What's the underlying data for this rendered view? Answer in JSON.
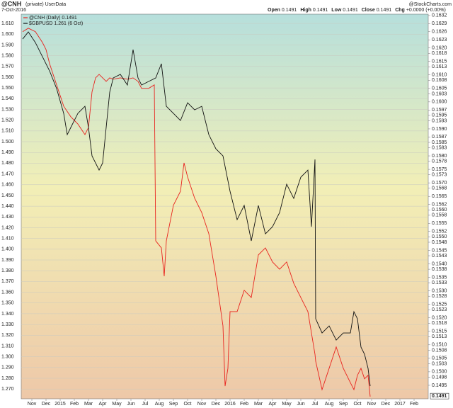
{
  "chart_data": {
    "type": "line",
    "title": "@CNH",
    "subtitle": "(private) UserData",
    "date": "7-Oct-2016",
    "source": "@StockCharts.com",
    "quote": [
      {
        "label": "Open",
        "value": "0.1491"
      },
      {
        "label": "High",
        "value": "0.1491"
      },
      {
        "label": "Low",
        "value": "0.1491"
      },
      {
        "label": "Close",
        "value": "0.1491"
      },
      {
        "label": "Chg",
        "value": "+0.0000 (+0.00%)"
      }
    ],
    "grid": true,
    "legend": "top-left",
    "xlim": [
      -0.75,
      28
    ],
    "xticks": [
      {
        "value": 0,
        "label": "Nov"
      },
      {
        "value": 1,
        "label": "Dec"
      },
      {
        "value": 2,
        "label": "2015"
      },
      {
        "value": 3,
        "label": "Feb"
      },
      {
        "value": 4,
        "label": "Mar"
      },
      {
        "value": 5,
        "label": "Apr"
      },
      {
        "value": 6,
        "label": "May"
      },
      {
        "value": 7,
        "label": "Jun"
      },
      {
        "value": 8,
        "label": "Jul"
      },
      {
        "value": 9,
        "label": "Aug"
      },
      {
        "value": 10,
        "label": "Sep"
      },
      {
        "value": 11,
        "label": "Oct"
      },
      {
        "value": 12,
        "label": "Nov"
      },
      {
        "value": 13,
        "label": "Dec"
      },
      {
        "value": 14,
        "label": "2016"
      },
      {
        "value": 15,
        "label": "Feb"
      },
      {
        "value": 16,
        "label": "Mar"
      },
      {
        "value": 17,
        "label": "Apr"
      },
      {
        "value": 18,
        "label": "May"
      },
      {
        "value": 19,
        "label": "Jun"
      },
      {
        "value": 20,
        "label": "Jul"
      },
      {
        "value": 21,
        "label": "Aug"
      },
      {
        "value": 22,
        "label": "Sep"
      },
      {
        "value": 23,
        "label": "Oct"
      },
      {
        "value": 24,
        "label": "Nov"
      },
      {
        "value": 25,
        "label": "Dec"
      },
      {
        "value": 26,
        "label": "2017"
      },
      {
        "value": 27,
        "label": "Feb"
      }
    ],
    "ylim": [
      1.2609,
      1.6186
    ],
    "yticks": [
      {
        "value": 1.61,
        "label": "1.610"
      },
      {
        "value": 1.6,
        "label": "1.600"
      },
      {
        "value": 1.59,
        "label": "1.590"
      },
      {
        "value": 1.58,
        "label": "1.580"
      },
      {
        "value": 1.57,
        "label": "1.570"
      },
      {
        "value": 1.56,
        "label": "1.560"
      },
      {
        "value": 1.55,
        "label": "1.550"
      },
      {
        "value": 1.54,
        "label": "1.540"
      },
      {
        "value": 1.53,
        "label": "1.530"
      },
      {
        "value": 1.52,
        "label": "1.520"
      },
      {
        "value": 1.51,
        "label": "1.510"
      },
      {
        "value": 1.5,
        "label": "1.500"
      },
      {
        "value": 1.49,
        "label": "1.490"
      },
      {
        "value": 1.48,
        "label": "1.480"
      },
      {
        "value": 1.47,
        "label": "1.470"
      },
      {
        "value": 1.46,
        "label": "1.460"
      },
      {
        "value": 1.45,
        "label": "1.450"
      },
      {
        "value": 1.44,
        "label": "1.440"
      },
      {
        "value": 1.43,
        "label": "1.430"
      },
      {
        "value": 1.42,
        "label": "1.420"
      },
      {
        "value": 1.41,
        "label": "1.410"
      },
      {
        "value": 1.4,
        "label": "1.400"
      },
      {
        "value": 1.39,
        "label": "1.390"
      },
      {
        "value": 1.38,
        "label": "1.380"
      },
      {
        "value": 1.37,
        "label": "1.370"
      },
      {
        "value": 1.36,
        "label": "1.360"
      },
      {
        "value": 1.35,
        "label": "1.350"
      },
      {
        "value": 1.34,
        "label": "1.340"
      },
      {
        "value": 1.33,
        "label": "1.330"
      },
      {
        "value": 1.32,
        "label": "1.320"
      },
      {
        "value": 1.31,
        "label": "1.310"
      },
      {
        "value": 1.3,
        "label": "1.300"
      },
      {
        "value": 1.29,
        "label": "1.290"
      },
      {
        "value": 1.28,
        "label": "1.280"
      },
      {
        "value": 1.27,
        "label": "1.270"
      }
    ],
    "y2lim": [
      0.149,
      0.16325
    ],
    "y2ticks": [
      0.1632,
      0.1629,
      0.1626,
      0.1623,
      {
        "value": 0.162,
        "label": "0.1620"
      },
      0.1618,
      0.1615,
      0.1613,
      {
        "value": 0.161,
        "label": "0.1610"
      },
      0.1608,
      0.1605,
      0.1603,
      {
        "value": 0.16,
        "label": "0.1600"
      },
      0.1597,
      0.1595,
      0.1593,
      {
        "value": 0.159,
        "label": "0.1590"
      },
      0.1587,
      0.1585,
      0.1583,
      {
        "value": 0.158,
        "label": "0.1580"
      },
      0.1578,
      0.1575,
      0.1573,
      {
        "value": 0.157,
        "label": "0.1570"
      },
      0.1568,
      0.1565,
      0.1562,
      {
        "value": 0.156,
        "label": "0.1560"
      },
      0.1558,
      0.1555,
      0.1552,
      {
        "value": 0.155,
        "label": "0.1550"
      },
      0.1548,
      0.1545,
      0.1543,
      {
        "value": 0.154,
        "label": "0.1540"
      },
      0.1538,
      0.1535,
      0.1533,
      {
        "value": 0.153,
        "label": "0.1530"
      },
      0.1528,
      0.1525,
      0.1523,
      {
        "value": 0.152,
        "label": "0.1520"
      },
      0.1518,
      0.1515,
      0.1513,
      {
        "value": 0.151,
        "label": "0.1510"
      },
      0.1508,
      0.1505,
      0.1503,
      {
        "value": 0.15,
        "label": "0.1500"
      },
      0.1498,
      0.1495
    ],
    "y2_marker": {
      "value": 0.1491,
      "label": "0.1491"
    },
    "series": [
      {
        "name": "@CNH (Daily) 0.1491",
        "color": "#e8231e",
        "axis": "y2",
        "x": [
          -0.65,
          -0.25,
          0.25,
          0.75,
          1.0,
          1.25,
          1.75,
          2.25,
          2.75,
          3.25,
          3.75,
          4.0,
          4.25,
          4.5,
          4.75,
          5.0,
          5.25,
          5.5,
          5.75,
          6.25,
          6.75,
          7.15,
          7.5,
          7.75,
          8.25,
          8.65,
          8.75,
          9.15,
          9.35,
          9.5,
          10.0,
          10.5,
          10.75,
          11.0,
          11.5,
          12.0,
          12.5,
          13.0,
          13.5,
          13.65,
          13.85,
          14.0,
          14.5,
          15.0,
          15.5,
          16.0,
          16.5,
          17.0,
          17.5,
          18.0,
          18.5,
          19.0,
          19.5,
          19.75,
          20.0,
          20.05,
          20.5,
          21.0,
          21.5,
          22.0,
          22.5,
          22.75,
          23.0,
          23.25,
          23.5,
          23.75,
          23.9
        ],
        "values": [
          0.1626,
          0.16273,
          0.1626,
          0.1622,
          0.16194,
          0.16142,
          0.16063,
          0.15984,
          0.15945,
          0.15918,
          0.15879,
          0.15905,
          0.16037,
          0.16089,
          0.16102,
          0.16089,
          0.16076,
          0.16089,
          0.16084,
          0.16089,
          0.16084,
          0.16089,
          0.16076,
          0.1605,
          0.1605,
          0.16063,
          0.15485,
          0.15459,
          0.15354,
          0.15485,
          0.15617,
          0.15669,
          0.15774,
          0.15722,
          0.15643,
          0.1559,
          0.15512,
          0.15354,
          0.1517,
          0.14947,
          0.15013,
          0.15223,
          0.15223,
          0.15302,
          0.15275,
          0.15433,
          0.15459,
          0.15407,
          0.1538,
          0.15407,
          0.15328,
          0.15275,
          0.15223,
          0.15144,
          0.15065,
          0.15039,
          0.14934,
          0.15013,
          0.15092,
          0.15013,
          0.1496,
          0.14934,
          0.14987,
          0.15013,
          0.14974,
          0.14987,
          0.14908
        ]
      },
      {
        "name": "$GBPUSD 1.261 (6 Oct)",
        "color": "#111111",
        "axis": "y",
        "x": [
          -0.65,
          -0.25,
          0.25,
          0.75,
          1.25,
          1.75,
          2.25,
          2.5,
          2.75,
          3.25,
          3.75,
          4.0,
          4.25,
          4.5,
          4.75,
          5.0,
          5.25,
          5.5,
          5.75,
          6.25,
          6.75,
          7.15,
          7.5,
          7.75,
          8.25,
          8.75,
          9.15,
          9.5,
          10.0,
          10.5,
          11.0,
          11.5,
          12.0,
          12.5,
          13.0,
          13.5,
          14.0,
          14.5,
          15.0,
          15.5,
          16.0,
          16.5,
          17.0,
          17.5,
          18.0,
          18.5,
          19.0,
          19.5,
          19.75,
          20.0,
          20.05,
          20.5,
          21.0,
          21.5,
          22.0,
          22.5,
          22.75,
          23.0,
          23.25,
          23.5,
          23.75,
          23.9
        ],
        "values": [
          1.5955,
          1.6021,
          1.5922,
          1.579,
          1.5659,
          1.5494,
          1.5263,
          1.5066,
          1.5132,
          1.5263,
          1.5329,
          1.5132,
          1.4868,
          1.4802,
          1.4736,
          1.4802,
          1.5132,
          1.5461,
          1.5593,
          1.5626,
          1.5527,
          1.5856,
          1.5593,
          1.5527,
          1.556,
          1.5593,
          1.5725,
          1.5329,
          1.5263,
          1.5197,
          1.5362,
          1.5296,
          1.5329,
          1.5066,
          1.4934,
          1.4868,
          1.4539,
          1.4275,
          1.4407,
          1.4078,
          1.4407,
          1.4143,
          1.4209,
          1.4341,
          1.4605,
          1.4473,
          1.467,
          1.4736,
          1.4209,
          1.4835,
          1.3353,
          1.3221,
          1.3287,
          1.3155,
          1.3221,
          1.3221,
          1.3419,
          1.3353,
          1.3089,
          1.3024,
          1.2892,
          1.2727
        ]
      }
    ]
  }
}
